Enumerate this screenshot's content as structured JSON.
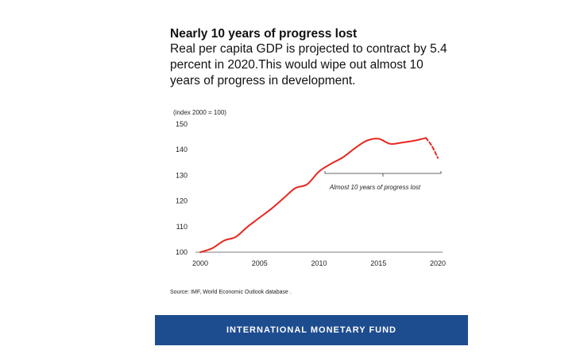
{
  "header": {
    "title": "Nearly 10 years of progress lost",
    "subtitle": "Real per capita GDP is projected to contract by 5.4 percent in 2020.This would wipe out almost 10 years of progress in development."
  },
  "chart_data": {
    "type": "line",
    "unit_label": "(index 2000 = 100)",
    "xlim": [
      2000,
      2020
    ],
    "ylim": [
      100,
      150
    ],
    "x_ticks": [
      "2000",
      "2005",
      "2010",
      "2015",
      "2020"
    ],
    "y_ticks": [
      "100",
      "110",
      "120",
      "130",
      "140",
      "150"
    ],
    "grid": false,
    "series": [
      {
        "style": "solid",
        "color": "#e8271f",
        "x": [
          2000,
          2001,
          2002,
          2003,
          2004,
          2005,
          2006,
          2007,
          2008,
          2009,
          2010,
          2011,
          2012,
          2013,
          2014,
          2015,
          2016,
          2017,
          2018,
          2019
        ],
        "values": [
          100,
          101.5,
          104.5,
          106,
          110,
          113.5,
          117,
          121,
          125,
          126.5,
          131.5,
          134.5,
          137,
          140.5,
          143.5,
          144.3,
          142.3,
          142.8,
          143.5,
          144.6
        ]
      },
      {
        "style": "dashed",
        "color": "#e8271f",
        "x": [
          2019,
          2019.5,
          2020
        ],
        "values": [
          144.6,
          141.5,
          136.8
        ]
      }
    ],
    "annotation": {
      "text": "Almost 10 years of progress lost",
      "x_from": 2010.5,
      "x_to": 2020
    }
  },
  "source": "Source: IMF, World Economic Outlook database .",
  "footer": {
    "text": "INTERNATIONAL MONETARY FUND",
    "color": "#1e4d8f"
  }
}
